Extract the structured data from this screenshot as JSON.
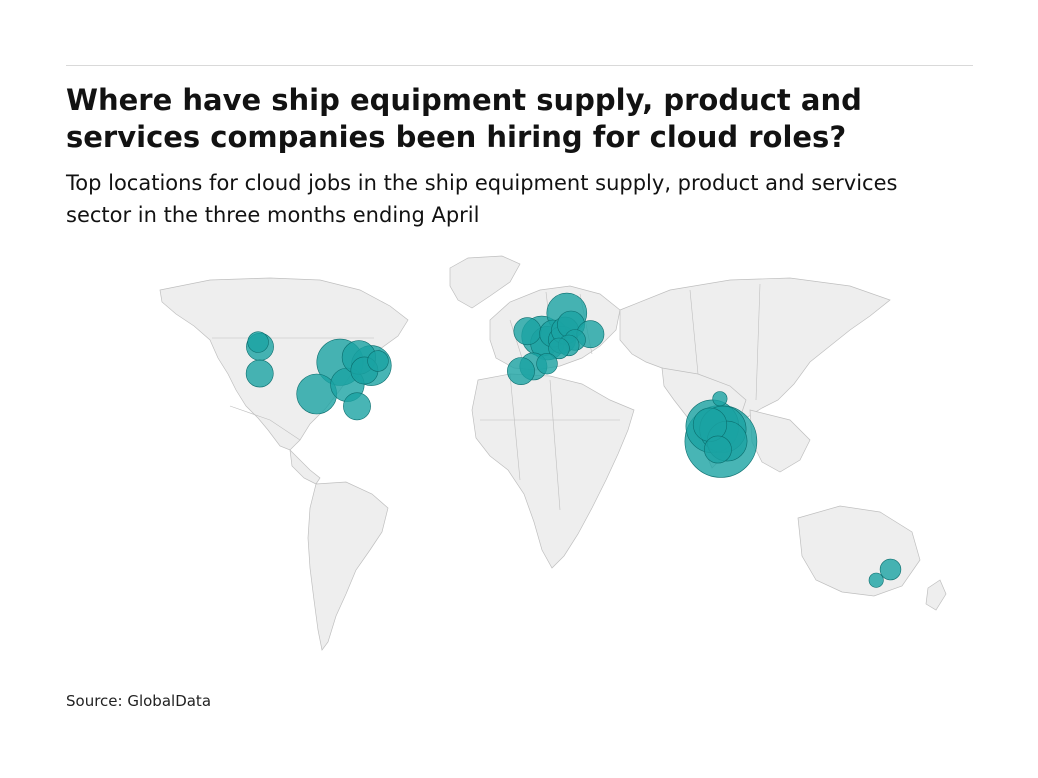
{
  "header": {
    "title": "Where have ship equipment supply, product and services companies been hiring for cloud roles?",
    "subtitle": "Top locations for cloud jobs in the ship equipment supply, product and services sector in the three months ending April"
  },
  "footer": {
    "source": "Source: GlobalData"
  },
  "colors": {
    "bubble": "#1aa3a3",
    "land": "#eeeeee",
    "border": "#bfbfbf"
  },
  "map": {
    "bubble_locations": [
      {
        "lon": -122.3,
        "lat": 47.6,
        "size": 3
      },
      {
        "lon": -123.1,
        "lat": 49.3,
        "size": 2
      },
      {
        "lon": -122.4,
        "lat": 37.8,
        "size": 3
      },
      {
        "lon": -97.7,
        "lat": 30.3,
        "size": 5
      },
      {
        "lon": -87.6,
        "lat": 41.9,
        "size": 6
      },
      {
        "lon": -84.4,
        "lat": 33.7,
        "size": 4
      },
      {
        "lon": -80.2,
        "lat": 25.8,
        "size": 3
      },
      {
        "lon": -79.4,
        "lat": 43.7,
        "size": 4
      },
      {
        "lon": -74.0,
        "lat": 40.7,
        "size": 5
      },
      {
        "lon": -71.1,
        "lat": 42.4,
        "size": 2
      },
      {
        "lon": -77.0,
        "lat": 38.9,
        "size": 3
      },
      {
        "lon": -0.1,
        "lat": 51.5,
        "size": 5
      },
      {
        "lon": -6.3,
        "lat": 53.3,
        "size": 3
      },
      {
        "lon": 2.35,
        "lat": 48.9,
        "size": 4
      },
      {
        "lon": 4.9,
        "lat": 52.4,
        "size": 3
      },
      {
        "lon": 8.7,
        "lat": 50.1,
        "size": 3
      },
      {
        "lon": 10.0,
        "lat": 53.5,
        "size": 3
      },
      {
        "lon": 10.8,
        "lat": 59.9,
        "size": 5
      },
      {
        "lon": 12.6,
        "lat": 55.7,
        "size": 3
      },
      {
        "lon": 21.0,
        "lat": 52.2,
        "size": 3
      },
      {
        "lon": 14.4,
        "lat": 50.1,
        "size": 2
      },
      {
        "lon": 11.6,
        "lat": 48.1,
        "size": 2
      },
      {
        "lon": 7.4,
        "lat": 47.0,
        "size": 2
      },
      {
        "lon": -3.7,
        "lat": 40.4,
        "size": 3
      },
      {
        "lon": 2.2,
        "lat": 41.4,
        "size": 2
      },
      {
        "lon": -9.1,
        "lat": 38.7,
        "size": 3
      },
      {
        "lon": 77.6,
        "lat": 12.97,
        "size": 10
      },
      {
        "lon": 78.5,
        "lat": 17.4,
        "size": 6
      },
      {
        "lon": 80.3,
        "lat": 13.1,
        "size": 5
      },
      {
        "lon": 73.9,
        "lat": 18.5,
        "size": 7
      },
      {
        "lon": 72.9,
        "lat": 19.1,
        "size": 4
      },
      {
        "lon": 76.3,
        "lat": 10.0,
        "size": 3
      },
      {
        "lon": 77.2,
        "lat": 28.6,
        "size": 1
      },
      {
        "lon": 151.2,
        "lat": -33.9,
        "size": 2
      },
      {
        "lon": 145.0,
        "lat": -37.8,
        "size": 1
      }
    ]
  }
}
